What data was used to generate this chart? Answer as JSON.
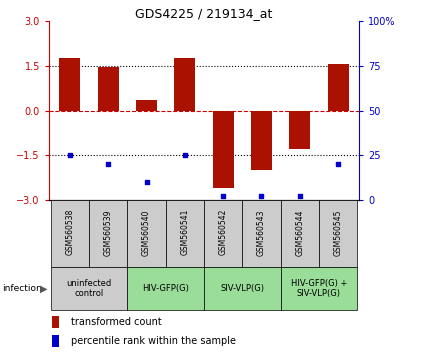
{
  "title": "GDS4225 / 219134_at",
  "samples": [
    "GSM560538",
    "GSM560539",
    "GSM560540",
    "GSM560541",
    "GSM560542",
    "GSM560543",
    "GSM560544",
    "GSM560545"
  ],
  "bar_values": [
    1.75,
    1.45,
    0.35,
    1.75,
    -2.6,
    -2.0,
    -1.3,
    1.55
  ],
  "dot_values": [
    25,
    20,
    10,
    25,
    2,
    2,
    2,
    20
  ],
  "ylim": [
    -3,
    3
  ],
  "y2lim": [
    0,
    100
  ],
  "yticks": [
    -3,
    -1.5,
    0,
    1.5,
    3
  ],
  "y2ticks": [
    0,
    25,
    50,
    75,
    100
  ],
  "y2ticklabels": [
    "0",
    "25",
    "50",
    "75",
    "100%"
  ],
  "hlines_dotted": [
    -1.5,
    1.5
  ],
  "hline_dashed": 0,
  "bar_color": "#aa1100",
  "dot_color": "#0000cc",
  "bar_width": 0.55,
  "group_extents": [
    {
      "start": 0,
      "end": 1,
      "label": "uninfected\ncontrol",
      "color": "#cccccc"
    },
    {
      "start": 2,
      "end": 3,
      "label": "HIV-GFP(G)",
      "color": "#99dd99"
    },
    {
      "start": 4,
      "end": 5,
      "label": "SIV-VLP(G)",
      "color": "#99dd99"
    },
    {
      "start": 6,
      "end": 7,
      "label": "HIV-GFP(G) +\nSIV-VLP(G)",
      "color": "#99dd99"
    }
  ],
  "infection_label": "infection",
  "legend_bar_label": "transformed count",
  "legend_dot_label": "percentile rank within the sample",
  "left_color": "#cc0000",
  "right_color": "#0000cc",
  "sample_bg": "#cccccc",
  "fig_bg": "#ffffff"
}
